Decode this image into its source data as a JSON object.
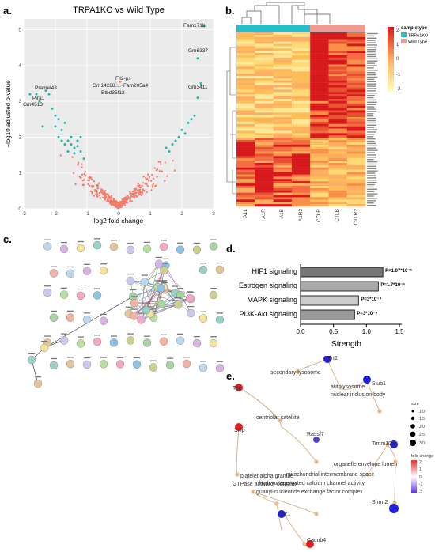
{
  "panel_letters": [
    "a.",
    "b.",
    "c.",
    "d.",
    "e."
  ],
  "panel_a": {
    "title": "TRPA1KO vs Wild Type",
    "x_label": "log2 fold change",
    "y_label": "−log10 adjusted p-value",
    "x_ticks": [
      "-3",
      "-2",
      "-1",
      "0",
      "1",
      "2",
      "3"
    ],
    "y_ticks": [
      "0",
      "1",
      "2",
      "3",
      "4",
      "5"
    ],
    "gene_labels": [
      "Fam171b",
      "Gm6337",
      "Gm3411",
      "Pramel43",
      "Pira1",
      "Gm4513",
      "Fil2-ps",
      "Gm14288",
      "Fam205a4",
      "Btbd35f12"
    ],
    "colors": {
      "significant": "#1fb5ad",
      "nonsignificant": "#f47c6a",
      "background": "#ebebeb"
    }
  },
  "panel_b": {
    "legend_title": "sampletype",
    "groups": [
      "TRPA1KO",
      "Wild Type"
    ],
    "group_colors": [
      "#22c0c8",
      "#f29a8f"
    ],
    "columns": [
      "A1L",
      "A1R",
      "A1B",
      "A1R2",
      "CTLR",
      "CTLB",
      "CTLR2"
    ],
    "scale_ticks": [
      "2",
      "1",
      "0",
      "-1",
      "-2"
    ],
    "colors": {
      "high": "#d7191c",
      "mid": "#fdae61",
      "low": "#ffffbf"
    }
  },
  "panel_d": {
    "x_label": "Strength",
    "x_ticks": [
      "0.0",
      "0.5",
      "1.0",
      "1.5"
    ],
    "bars": [
      {
        "label": "HIF1 signaling",
        "value": 1.25,
        "annotation": "P=1.07*10⁻⁵",
        "color": "#777777"
      },
      {
        "label": "Estrogen signaling",
        "value": 1.18,
        "annotation": "P=1.7*10⁻⁵",
        "color": "#aaaaaa"
      },
      {
        "label": "MAPK signaling",
        "value": 0.88,
        "annotation": "P=3*10⁻⁴",
        "color": "#cccccc"
      },
      {
        "label": "PI3K-Akt signaling",
        "value": 0.82,
        "annotation": "P=3*10⁻⁴",
        "color": "#9a9a9a"
      }
    ]
  },
  "panel_e": {
    "genes": [
      "Ert1",
      "Slub1",
      "Tek",
      "Sxip",
      "Rassf7",
      "Timm10b",
      "Shmt2",
      "Rgr1",
      "Cacnb4"
    ],
    "terms": [
      "secondary lysosome",
      "autolysosome",
      "nuclear inclusion body",
      "centriolar satellite",
      "platelet alpha granule",
      "organelle envelope lumen",
      "GTPase activator complex",
      "mitochondrial intermembrane space",
      "high voltage-gated calcium channel activity",
      "guanyl-nucleotide exchange factor complex"
    ],
    "size_legend_title": "size",
    "size_ticks": [
      "1.0",
      "1.5",
      "2.0",
      "2.5",
      "3.0"
    ],
    "color_legend_title": "fold change",
    "color_ticks": [
      "2",
      "1",
      "0",
      "-1",
      "-2"
    ]
  }
}
